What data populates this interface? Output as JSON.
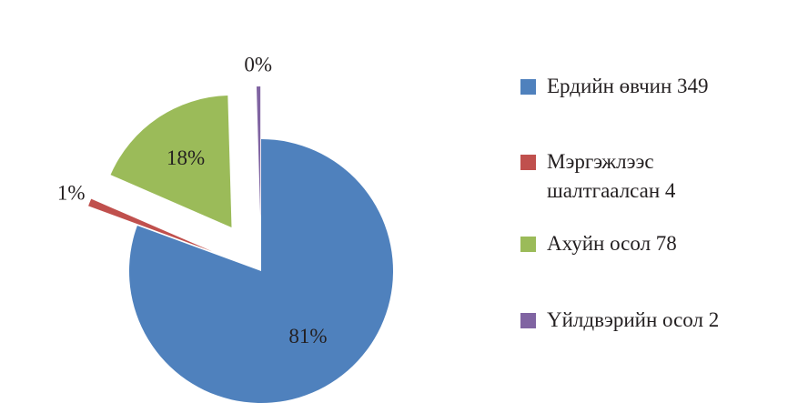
{
  "chart_data": {
    "type": "pie",
    "categories": [
      "Ердийн өвчин 349",
      "Мэргэжлээс шалтгаалсан  4",
      "Ахуйн осол 78",
      "Үйлдвэрийн осол 2"
    ],
    "values": [
      80.6,
      0.92,
      18.01,
      0.46
    ],
    "value_labels": [
      "81%",
      "1%",
      "18%",
      "0%"
    ],
    "colors": [
      "#4f81bd",
      "#c0504d",
      "#9bbb59",
      "#8064a2"
    ],
    "exploded": true,
    "legend": "right"
  }
}
